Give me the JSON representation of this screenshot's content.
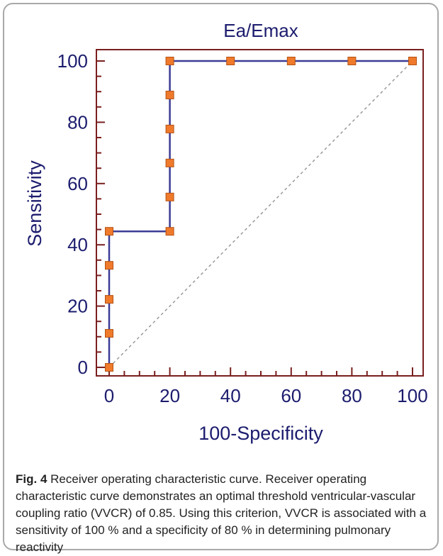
{
  "chart_data": {
    "type": "line",
    "title": "Ea/Emax",
    "xlabel": "100-Specificity",
    "ylabel": "Sensitivity",
    "xlim": [
      0,
      100
    ],
    "ylim": [
      0,
      100
    ],
    "xticks": [
      "0",
      "20",
      "40",
      "60",
      "80",
      "100"
    ],
    "yticks": [
      "0",
      "20",
      "40",
      "60",
      "80",
      "100"
    ],
    "grid": false,
    "series": [
      {
        "x": [
          0,
          0,
          0,
          0,
          0,
          20,
          20,
          20,
          20,
          20,
          20,
          40,
          60,
          80,
          100
        ],
        "y": [
          0,
          11.1,
          22.2,
          33.3,
          44.4,
          44.4,
          55.6,
          66.7,
          77.8,
          88.9,
          100,
          100,
          100,
          100,
          100
        ]
      }
    ],
    "reference_line": {
      "x": [
        0,
        100
      ],
      "y": [
        0,
        100
      ]
    },
    "colors": {
      "curve": "#3c3c96",
      "marker": "#ef7a2b",
      "marker_edge": "#b45214",
      "axis": "#7a1f1f",
      "reference": "#9a9a9a",
      "text": "#1c1c6e"
    }
  },
  "caption": {
    "label": "Fig. 4",
    "text": " Receiver operating characteristic curve. Receiver operating characteristic curve demonstrates an optimal threshold ventricular-vascular coupling ratio (VVCR) of 0.85. Using this criterion, VVCR is associated with a sensitivity of 100 % and a specificity of 80 % in determining pulmonary reactivity"
  }
}
